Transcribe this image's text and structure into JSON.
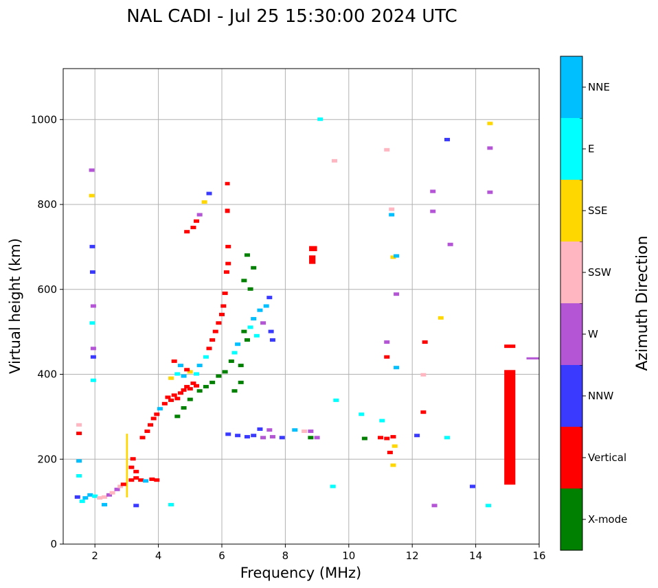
{
  "chart_data": {
    "type": "scatter",
    "title": "NAL CADI - Jul 25 15:30:00 2024 UTC",
    "xlabel": "Frequency (MHz)",
    "ylabel": "Virtual height (km)",
    "xlim": [
      1,
      16
    ],
    "ylim": [
      0,
      1120
    ],
    "xticks": [
      2,
      4,
      6,
      8,
      10,
      12,
      14,
      16
    ],
    "yticks": [
      0,
      200,
      400,
      600,
      800,
      1000
    ],
    "grid": true,
    "colorbar": {
      "label": "Azimuth Direction",
      "categories": [
        {
          "name": "X-mode",
          "color": "#008000"
        },
        {
          "name": "Vertical",
          "color": "#ff0000"
        },
        {
          "name": "NNW",
          "color": "#3a3aff"
        },
        {
          "name": "W",
          "color": "#b455d6"
        },
        {
          "name": "SSW",
          "color": "#ffb6c1"
        },
        {
          "name": "SSE",
          "color": "#ffd700"
        },
        {
          "name": "E",
          "color": "#00ffff"
        },
        {
          "name": "NNE",
          "color": "#00bfff"
        }
      ]
    },
    "features": [
      {
        "cat": "Vertical",
        "f0": 14.9,
        "f1": 15.25,
        "h0": 140,
        "h1": 410
      },
      {
        "cat": "Vertical",
        "f0": 14.9,
        "f1": 15.25,
        "h0": 462,
        "h1": 470
      },
      {
        "cat": "SSE",
        "f0": 2.98,
        "f1": 3.04,
        "h0": 110,
        "h1": 260
      },
      {
        "cat": "Vertical",
        "f0": 8.75,
        "f1": 8.95,
        "h0": 660,
        "h1": 680
      },
      {
        "cat": "Vertical",
        "f0": 8.75,
        "f1": 9.0,
        "h0": 690,
        "h1": 702
      },
      {
        "cat": "W",
        "f0": 15.6,
        "f1": 16.0,
        "h0": 435,
        "h1": 440
      },
      {
        "cat": "Vertical",
        "f0": 6.1,
        "f1": 6.25,
        "h0": 780,
        "h1": 790
      },
      {
        "cat": "Vertical",
        "f0": 6.1,
        "f1": 6.25,
        "h0": 845,
        "h1": 853
      }
    ],
    "points": [
      {
        "f": 1.45,
        "h": 110,
        "cat": "NNW"
      },
      {
        "f": 1.6,
        "h": 100,
        "cat": "E"
      },
      {
        "f": 1.7,
        "h": 108,
        "cat": "NNE"
      },
      {
        "f": 1.85,
        "h": 115,
        "cat": "NNE"
      },
      {
        "f": 2.0,
        "h": 112,
        "cat": "E"
      },
      {
        "f": 2.15,
        "h": 108,
        "cat": "SSW"
      },
      {
        "f": 2.3,
        "h": 110,
        "cat": "SSW"
      },
      {
        "f": 2.45,
        "h": 115,
        "cat": "W"
      },
      {
        "f": 2.55,
        "h": 120,
        "cat": "SSW"
      },
      {
        "f": 2.7,
        "h": 128,
        "cat": "W"
      },
      {
        "f": 2.8,
        "h": 135,
        "cat": "SSW"
      },
      {
        "f": 2.9,
        "h": 140,
        "cat": "Vertical"
      },
      {
        "f": 3.15,
        "h": 150,
        "cat": "Vertical"
      },
      {
        "f": 3.3,
        "h": 155,
        "cat": "Vertical"
      },
      {
        "f": 3.45,
        "h": 150,
        "cat": "Vertical"
      },
      {
        "f": 3.6,
        "h": 148,
        "cat": "NNE"
      },
      {
        "f": 3.8,
        "h": 152,
        "cat": "Vertical"
      },
      {
        "f": 3.95,
        "h": 150,
        "cat": "Vertical"
      },
      {
        "f": 3.15,
        "h": 180,
        "cat": "Vertical"
      },
      {
        "f": 3.2,
        "h": 200,
        "cat": "Vertical"
      },
      {
        "f": 3.3,
        "h": 170,
        "cat": "Vertical"
      },
      {
        "f": 3.5,
        "h": 250,
        "cat": "Vertical"
      },
      {
        "f": 3.65,
        "h": 265,
        "cat": "Vertical"
      },
      {
        "f": 3.75,
        "h": 280,
        "cat": "Vertical"
      },
      {
        "f": 3.85,
        "h": 295,
        "cat": "Vertical"
      },
      {
        "f": 3.95,
        "h": 305,
        "cat": "Vertical"
      },
      {
        "f": 4.05,
        "h": 318,
        "cat": "NNE"
      },
      {
        "f": 4.2,
        "h": 330,
        "cat": "Vertical"
      },
      {
        "f": 4.3,
        "h": 345,
        "cat": "Vertical"
      },
      {
        "f": 4.4,
        "h": 338,
        "cat": "Vertical"
      },
      {
        "f": 4.5,
        "h": 350,
        "cat": "Vertical"
      },
      {
        "f": 4.6,
        "h": 342,
        "cat": "Vertical"
      },
      {
        "f": 4.7,
        "h": 355,
        "cat": "Vertical"
      },
      {
        "f": 4.8,
        "h": 362,
        "cat": "Vertical"
      },
      {
        "f": 4.9,
        "h": 370,
        "cat": "Vertical"
      },
      {
        "f": 5.0,
        "h": 365,
        "cat": "Vertical"
      },
      {
        "f": 5.1,
        "h": 378,
        "cat": "Vertical"
      },
      {
        "f": 5.2,
        "h": 372,
        "cat": "Vertical"
      },
      {
        "f": 4.4,
        "h": 390,
        "cat": "SSE"
      },
      {
        "f": 4.6,
        "h": 400,
        "cat": "E"
      },
      {
        "f": 4.8,
        "h": 395,
        "cat": "NNE"
      },
      {
        "f": 5.0,
        "h": 405,
        "cat": "SSE"
      },
      {
        "f": 5.2,
        "h": 400,
        "cat": "E"
      },
      {
        "f": 4.5,
        "h": 430,
        "cat": "Vertical"
      },
      {
        "f": 4.7,
        "h": 420,
        "cat": "NNE"
      },
      {
        "f": 4.9,
        "h": 410,
        "cat": "Vertical"
      },
      {
        "f": 4.6,
        "h": 300,
        "cat": "X-mode"
      },
      {
        "f": 4.8,
        "h": 320,
        "cat": "X-mode"
      },
      {
        "f": 5.0,
        "h": 340,
        "cat": "X-mode"
      },
      {
        "f": 5.3,
        "h": 360,
        "cat": "X-mode"
      },
      {
        "f": 5.5,
        "h": 370,
        "cat": "X-mode"
      },
      {
        "f": 5.7,
        "h": 380,
        "cat": "X-mode"
      },
      {
        "f": 5.9,
        "h": 395,
        "cat": "X-mode"
      },
      {
        "f": 6.1,
        "h": 405,
        "cat": "X-mode"
      },
      {
        "f": 5.3,
        "h": 420,
        "cat": "NNE"
      },
      {
        "f": 5.5,
        "h": 440,
        "cat": "E"
      },
      {
        "f": 5.6,
        "h": 460,
        "cat": "Vertical"
      },
      {
        "f": 5.7,
        "h": 480,
        "cat": "Vertical"
      },
      {
        "f": 5.8,
        "h": 500,
        "cat": "Vertical"
      },
      {
        "f": 5.9,
        "h": 520,
        "cat": "Vertical"
      },
      {
        "f": 6.0,
        "h": 540,
        "cat": "Vertical"
      },
      {
        "f": 6.05,
        "h": 560,
        "cat": "Vertical"
      },
      {
        "f": 6.1,
        "h": 590,
        "cat": "Vertical"
      },
      {
        "f": 6.15,
        "h": 640,
        "cat": "Vertical"
      },
      {
        "f": 6.2,
        "h": 700,
        "cat": "Vertical"
      },
      {
        "f": 6.2,
        "h": 660,
        "cat": "Vertical"
      },
      {
        "f": 6.3,
        "h": 430,
        "cat": "X-mode"
      },
      {
        "f": 6.4,
        "h": 450,
        "cat": "E"
      },
      {
        "f": 6.5,
        "h": 470,
        "cat": "NNE"
      },
      {
        "f": 6.6,
        "h": 420,
        "cat": "X-mode"
      },
      {
        "f": 6.7,
        "h": 500,
        "cat": "X-mode"
      },
      {
        "f": 6.8,
        "h": 480,
        "cat": "X-mode"
      },
      {
        "f": 6.9,
        "h": 510,
        "cat": "E"
      },
      {
        "f": 7.0,
        "h": 530,
        "cat": "NNE"
      },
      {
        "f": 7.1,
        "h": 490,
        "cat": "E"
      },
      {
        "f": 7.2,
        "h": 550,
        "cat": "NNE"
      },
      {
        "f": 7.3,
        "h": 520,
        "cat": "W"
      },
      {
        "f": 7.4,
        "h": 560,
        "cat": "NNE"
      },
      {
        "f": 7.5,
        "h": 580,
        "cat": "NNW"
      },
      {
        "f": 7.55,
        "h": 500,
        "cat": "NNW"
      },
      {
        "f": 7.6,
        "h": 480,
        "cat": "NNW"
      },
      {
        "f": 6.7,
        "h": 620,
        "cat": "X-mode"
      },
      {
        "f": 6.8,
        "h": 680,
        "cat": "X-mode"
      },
      {
        "f": 6.9,
        "h": 600,
        "cat": "X-mode"
      },
      {
        "f": 7.0,
        "h": 650,
        "cat": "X-mode"
      },
      {
        "f": 6.6,
        "h": 380,
        "cat": "X-mode"
      },
      {
        "f": 6.4,
        "h": 360,
        "cat": "X-mode"
      },
      {
        "f": 6.2,
        "h": 258,
        "cat": "NNW"
      },
      {
        "f": 6.5,
        "h": 255,
        "cat": "NNW"
      },
      {
        "f": 6.8,
        "h": 252,
        "cat": "NNW"
      },
      {
        "f": 7.0,
        "h": 255,
        "cat": "NNW"
      },
      {
        "f": 7.3,
        "h": 250,
        "cat": "W"
      },
      {
        "f": 7.6,
        "h": 252,
        "cat": "W"
      },
      {
        "f": 7.9,
        "h": 250,
        "cat": "NNW"
      },
      {
        "f": 7.2,
        "h": 270,
        "cat": "NNW"
      },
      {
        "f": 7.5,
        "h": 268,
        "cat": "W"
      },
      {
        "f": 8.3,
        "h": 268,
        "cat": "NNE"
      },
      {
        "f": 8.6,
        "h": 265,
        "cat": "SSW"
      },
      {
        "f": 8.8,
        "h": 265,
        "cat": "W"
      },
      {
        "f": 9.0,
        "h": 250,
        "cat": "W"
      },
      {
        "f": 8.8,
        "h": 250,
        "cat": "X-mode"
      },
      {
        "f": 10.5,
        "h": 248,
        "cat": "X-mode"
      },
      {
        "f": 11.0,
        "h": 250,
        "cat": "Vertical"
      },
      {
        "f": 11.2,
        "h": 248,
        "cat": "Vertical"
      },
      {
        "f": 11.4,
        "h": 252,
        "cat": "Vertical"
      },
      {
        "f": 12.15,
        "h": 255,
        "cat": "NNW"
      },
      {
        "f": 13.1,
        "h": 250,
        "cat": "E"
      },
      {
        "f": 11.3,
        "h": 215,
        "cat": "Vertical"
      },
      {
        "f": 11.4,
        "h": 185,
        "cat": "SSE"
      },
      {
        "f": 11.45,
        "h": 230,
        "cat": "SSE"
      },
      {
        "f": 10.4,
        "h": 305,
        "cat": "E"
      },
      {
        "f": 11.05,
        "h": 290,
        "cat": "E"
      },
      {
        "f": 12.35,
        "h": 310,
        "cat": "Vertical"
      },
      {
        "f": 12.35,
        "h": 398,
        "cat": "SSW"
      },
      {
        "f": 12.4,
        "h": 475,
        "cat": "Vertical"
      },
      {
        "f": 11.2,
        "h": 475,
        "cat": "W"
      },
      {
        "f": 11.2,
        "h": 440,
        "cat": "Vertical"
      },
      {
        "f": 11.5,
        "h": 415,
        "cat": "NNE"
      },
      {
        "f": 9.6,
        "h": 338,
        "cat": "E"
      },
      {
        "f": 9.5,
        "h": 135,
        "cat": "E"
      },
      {
        "f": 12.7,
        "h": 90,
        "cat": "W"
      },
      {
        "f": 13.9,
        "h": 135,
        "cat": "NNW"
      },
      {
        "f": 14.4,
        "h": 90,
        "cat": "E"
      },
      {
        "f": 4.4,
        "h": 92,
        "cat": "E"
      },
      {
        "f": 2.3,
        "h": 92,
        "cat": "NNE"
      },
      {
        "f": 12.9,
        "h": 532,
        "cat": "SSE"
      },
      {
        "f": 11.5,
        "h": 588,
        "cat": "W"
      },
      {
        "f": 11.4,
        "h": 675,
        "cat": "SSE"
      },
      {
        "f": 11.5,
        "h": 678,
        "cat": "NNE"
      },
      {
        "f": 11.35,
        "h": 775,
        "cat": "NNE"
      },
      {
        "f": 11.35,
        "h": 788,
        "cat": "SSW"
      },
      {
        "f": 12.65,
        "h": 783,
        "cat": "W"
      },
      {
        "f": 13.2,
        "h": 705,
        "cat": "W"
      },
      {
        "f": 12.65,
        "h": 830,
        "cat": "W"
      },
      {
        "f": 14.45,
        "h": 828,
        "cat": "W"
      },
      {
        "f": 14.45,
        "h": 932,
        "cat": "W"
      },
      {
        "f": 14.45,
        "h": 990,
        "cat": "SSE"
      },
      {
        "f": 13.1,
        "h": 952,
        "cat": "NNW"
      },
      {
        "f": 11.2,
        "h": 928,
        "cat": "SSW"
      },
      {
        "f": 9.55,
        "h": 902,
        "cat": "SSW"
      },
      {
        "f": 9.1,
        "h": 1000,
        "cat": "E"
      },
      {
        "f": 5.2,
        "h": 760,
        "cat": "Vertical"
      },
      {
        "f": 5.1,
        "h": 745,
        "cat": "Vertical"
      },
      {
        "f": 4.9,
        "h": 735,
        "cat": "Vertical"
      },
      {
        "f": 5.3,
        "h": 775,
        "cat": "W"
      },
      {
        "f": 5.45,
        "h": 805,
        "cat": "SSE"
      },
      {
        "f": 5.6,
        "h": 825,
        "cat": "NNW"
      },
      {
        "f": 1.9,
        "h": 880,
        "cat": "W"
      },
      {
        "f": 1.9,
        "h": 820,
        "cat": "SSE"
      },
      {
        "f": 1.92,
        "h": 700,
        "cat": "NNW"
      },
      {
        "f": 1.93,
        "h": 640,
        "cat": "NNW"
      },
      {
        "f": 1.95,
        "h": 560,
        "cat": "W"
      },
      {
        "f": 1.92,
        "h": 520,
        "cat": "E"
      },
      {
        "f": 1.95,
        "h": 460,
        "cat": "W"
      },
      {
        "f": 1.95,
        "h": 385,
        "cat": "E"
      },
      {
        "f": 1.95,
        "h": 440,
        "cat": "NNW"
      },
      {
        "f": 1.5,
        "h": 280,
        "cat": "SSW"
      },
      {
        "f": 1.5,
        "h": 260,
        "cat": "Vertical"
      },
      {
        "f": 1.5,
        "h": 195,
        "cat": "NNE"
      },
      {
        "f": 1.5,
        "h": 160,
        "cat": "E"
      },
      {
        "f": 3.3,
        "h": 90,
        "cat": "NNW"
      }
    ]
  }
}
